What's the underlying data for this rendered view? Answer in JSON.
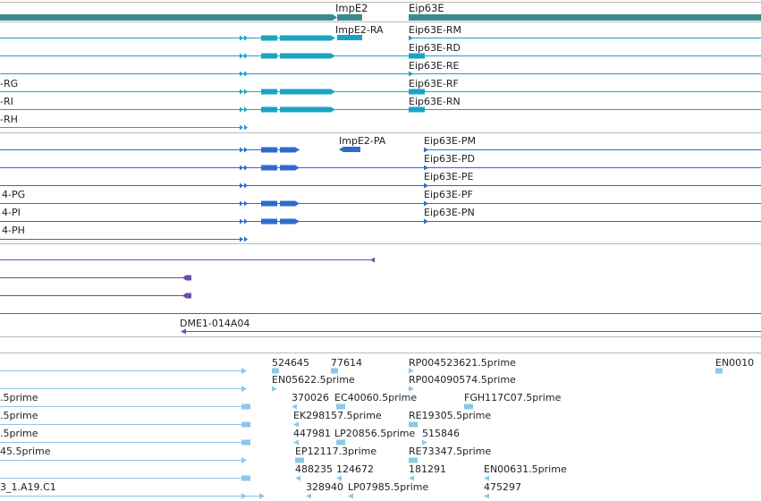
{
  "colors": {
    "gene": "#3a8c8c",
    "flybase": "#1ba3c2",
    "refseq": "#2f6bcc",
    "dme": "#6c4ea6",
    "est": "#8ec7e8",
    "separator": "#bbbbbb"
  },
  "genes_track": {
    "genes": [
      {
        "label": "ImpE2",
        "name": "gene-impe2"
      },
      {
        "label": "Eip63E",
        "name": "gene-eip63e"
      }
    ]
  },
  "flybase_track": {
    "left_labels": [
      "-RG",
      "-RI",
      "-RH"
    ],
    "transcripts": [
      {
        "label": "ImpE2-RA",
        "name": "transcript-impe2-ra"
      },
      {
        "label": "Eip63E-RM",
        "name": "transcript-eip63e-rm"
      },
      {
        "label": "Eip63E-RD",
        "name": "transcript-eip63e-rd"
      },
      {
        "label": "Eip63E-RE",
        "name": "transcript-eip63e-re"
      },
      {
        "label": "Eip63E-RF",
        "name": "transcript-eip63e-rf"
      },
      {
        "label": "Eip63E-RN",
        "name": "transcript-eip63e-rn"
      }
    ]
  },
  "refseq_track": {
    "left_labels": [
      "4-PG",
      "4-PI",
      "4-PH"
    ],
    "transcripts": [
      {
        "label": "ImpE2-PA",
        "name": "transcript-impe2-pa"
      },
      {
        "label": "Eip63E-PM",
        "name": "transcript-eip63e-pm"
      },
      {
        "label": "Eip63E-PD",
        "name": "transcript-eip63e-pd"
      },
      {
        "label": "Eip63E-PE",
        "name": "transcript-eip63e-pe"
      },
      {
        "label": "Eip63E-PF",
        "name": "transcript-eip63e-pf"
      },
      {
        "label": "Eip63E-PN",
        "name": "transcript-eip63e-pn"
      }
    ]
  },
  "dme_track": {
    "label": "DME1-014A04"
  },
  "est_track": {
    "labels": [
      "524645",
      "77614",
      "RP004523621.5prime",
      "EN0010",
      "EN05622.5prime",
      "RP004090574.5prime",
      ".5prime",
      "370026",
      "EC40060.5prime",
      "FGH117C07.5prime",
      ".5prime",
      "EK298157.5prime",
      "RE19305.5prime",
      ".5prime",
      "447981",
      "LP20856.5prime",
      "515846",
      "45.5prime",
      "EP12117.3prime",
      "RE73347.5prime",
      "488235",
      "124672",
      "181291",
      "EN00631.5prime",
      "3_1.A19.C1",
      "328940",
      "LP07985.5prime",
      "475297"
    ]
  }
}
